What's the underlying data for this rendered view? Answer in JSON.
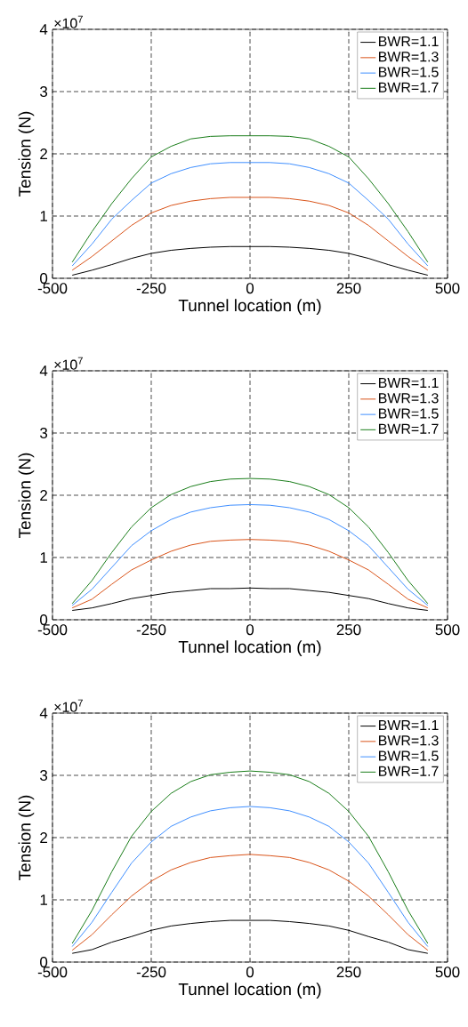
{
  "chart_data": [
    {
      "type": "line",
      "x": [
        -450,
        -400,
        -350,
        -300,
        -250,
        -200,
        -150,
        -100,
        -50,
        0,
        50,
        100,
        150,
        200,
        250,
        300,
        350,
        400,
        450
      ],
      "xlabel": "Tunnel location (m)",
      "ylabel": "Tension (N)",
      "xlim": [
        -500,
        500
      ],
      "xticks": [
        -500,
        -250,
        0,
        250,
        500
      ],
      "ylim": [
        0,
        4
      ],
      "yticks": [
        0,
        1,
        2,
        3,
        4
      ],
      "grid": true,
      "legend": "top right",
      "annotations": [
        "×10$^{7}$"
      ],
      "series": [
        {
          "name": "BWR=1.1",
          "color": "#000000",
          "values": [
            0.05,
            0.13,
            0.22,
            0.32,
            0.4,
            0.45,
            0.48,
            0.5,
            0.51,
            0.51,
            0.51,
            0.5,
            0.48,
            0.45,
            0.4,
            0.32,
            0.22,
            0.13,
            0.05
          ]
        },
        {
          "name": "BWR=1.3",
          "color": "#d95319",
          "values": [
            0.13,
            0.35,
            0.6,
            0.85,
            1.05,
            1.17,
            1.24,
            1.28,
            1.3,
            1.3,
            1.3,
            1.28,
            1.24,
            1.17,
            1.05,
            0.85,
            0.6,
            0.35,
            0.13
          ]
        },
        {
          "name": "BWR=1.5",
          "color": "#3f8fff",
          "values": [
            0.2,
            0.55,
            0.95,
            1.25,
            1.53,
            1.68,
            1.78,
            1.84,
            1.86,
            1.86,
            1.86,
            1.84,
            1.78,
            1.68,
            1.53,
            1.25,
            0.95,
            0.55,
            0.2
          ]
        },
        {
          "name": "BWR=1.7",
          "color": "#1a7d1a",
          "values": [
            0.26,
            0.75,
            1.2,
            1.6,
            1.95,
            2.12,
            2.24,
            2.28,
            2.29,
            2.29,
            2.29,
            2.28,
            2.24,
            2.12,
            1.95,
            1.6,
            1.2,
            0.75,
            0.26
          ]
        }
      ]
    },
    {
      "type": "line",
      "x": [
        -450,
        -400,
        -350,
        -300,
        -250,
        -200,
        -150,
        -100,
        -50,
        0,
        50,
        100,
        150,
        200,
        250,
        300,
        350,
        400,
        450
      ],
      "xlabel": "Tunnel location (m)",
      "ylabel": "Tension (N)",
      "xlim": [
        -500,
        500
      ],
      "xticks": [
        -500,
        -250,
        0,
        250,
        500
      ],
      "ylim": [
        0,
        4
      ],
      "yticks": [
        0,
        1,
        2,
        3,
        4
      ],
      "grid": true,
      "legend": "top right",
      "annotations": [
        "×10$^{7}$"
      ],
      "series": [
        {
          "name": "BWR=1.1",
          "color": "#000000",
          "values": [
            0.15,
            0.19,
            0.26,
            0.34,
            0.39,
            0.44,
            0.47,
            0.5,
            0.5,
            0.51,
            0.5,
            0.5,
            0.47,
            0.44,
            0.39,
            0.34,
            0.26,
            0.19,
            0.15
          ]
        },
        {
          "name": "BWR=1.3",
          "color": "#d95319",
          "values": [
            0.19,
            0.33,
            0.57,
            0.8,
            0.96,
            1.1,
            1.2,
            1.26,
            1.28,
            1.29,
            1.28,
            1.26,
            1.2,
            1.1,
            0.96,
            0.8,
            0.57,
            0.33,
            0.19
          ]
        },
        {
          "name": "BWR=1.5",
          "color": "#3f8fff",
          "values": [
            0.23,
            0.49,
            0.84,
            1.19,
            1.43,
            1.61,
            1.73,
            1.8,
            1.84,
            1.85,
            1.84,
            1.8,
            1.73,
            1.61,
            1.43,
            1.19,
            0.84,
            0.49,
            0.23
          ]
        },
        {
          "name": "BWR=1.7",
          "color": "#1a7d1a",
          "values": [
            0.26,
            0.63,
            1.08,
            1.49,
            1.8,
            2.01,
            2.14,
            2.22,
            2.26,
            2.27,
            2.26,
            2.22,
            2.14,
            2.01,
            1.8,
            1.49,
            1.08,
            0.63,
            0.26
          ]
        }
      ]
    },
    {
      "type": "line",
      "x": [
        -450,
        -400,
        -350,
        -300,
        -250,
        -200,
        -150,
        -100,
        -50,
        0,
        50,
        100,
        150,
        200,
        250,
        300,
        350,
        400,
        450
      ],
      "xlabel": "Tunnel location (m)",
      "ylabel": "Tension (N)",
      "xlim": [
        -500,
        500
      ],
      "xticks": [
        -500,
        -250,
        0,
        250,
        500
      ],
      "ylim": [
        0,
        4
      ],
      "yticks": [
        0,
        1,
        2,
        3,
        4
      ],
      "grid": true,
      "legend": "top right",
      "annotations": [
        "×10$^{7}$"
      ],
      "series": [
        {
          "name": "BWR=1.1",
          "color": "#000000",
          "values": [
            0.14,
            0.2,
            0.32,
            0.41,
            0.51,
            0.58,
            0.62,
            0.65,
            0.67,
            0.67,
            0.67,
            0.65,
            0.62,
            0.58,
            0.51,
            0.41,
            0.32,
            0.2,
            0.14
          ]
        },
        {
          "name": "BWR=1.3",
          "color": "#d95319",
          "values": [
            0.19,
            0.44,
            0.76,
            1.06,
            1.3,
            1.48,
            1.6,
            1.68,
            1.71,
            1.73,
            1.71,
            1.68,
            1.6,
            1.48,
            1.3,
            1.06,
            0.76,
            0.44,
            0.19
          ]
        },
        {
          "name": "BWR=1.5",
          "color": "#3f8fff",
          "values": [
            0.25,
            0.64,
            1.12,
            1.59,
            1.93,
            2.18,
            2.33,
            2.43,
            2.48,
            2.5,
            2.48,
            2.43,
            2.33,
            2.18,
            1.93,
            1.59,
            1.12,
            0.64,
            0.25
          ]
        },
        {
          "name": "BWR=1.7",
          "color": "#1a7d1a",
          "values": [
            0.3,
            0.83,
            1.45,
            2.02,
            2.42,
            2.71,
            2.9,
            3.01,
            3.05,
            3.07,
            3.05,
            3.01,
            2.9,
            2.71,
            2.42,
            2.02,
            1.45,
            0.83,
            0.3
          ]
        }
      ]
    }
  ]
}
